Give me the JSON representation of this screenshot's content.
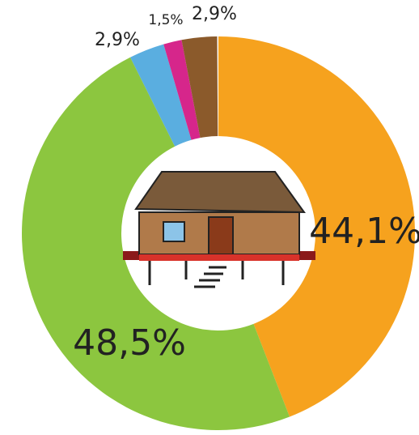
{
  "chart_data": {
    "type": "donut",
    "values": [
      44.1,
      48.5,
      2.9,
      1.5,
      2.9
    ],
    "value_labels": [
      "44,1%",
      "48,5%",
      "2,9%",
      "1,5%",
      "2,9%"
    ],
    "colors": [
      "#f6a21e",
      "#8cc63f",
      "#5aaee0",
      "#d6268b",
      "#8b5a2b"
    ]
  }
}
